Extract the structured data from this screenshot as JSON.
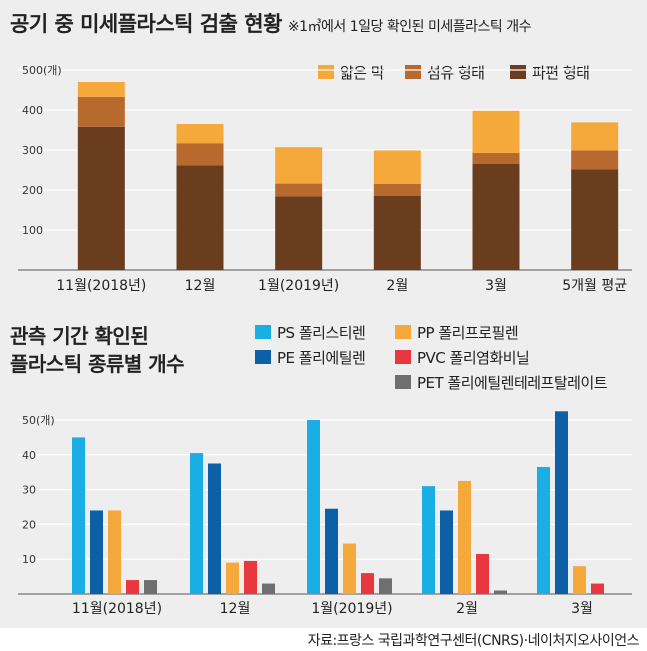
{
  "header": {
    "title": "공기 중 미세플라스틱 검출 현황",
    "subtitle": "※1㎥에서 1일당 확인된 미세플라스틱 개수"
  },
  "chart_data": [
    {
      "type": "bar",
      "stacked": true,
      "title": "공기 중 미세플라스틱 검출 현황",
      "unit_label": "500(개)",
      "categories": [
        "11월(2018년)",
        "12월",
        "1월(2019년)",
        "2월",
        "3월",
        "5개월 평균"
      ],
      "ylim": [
        0,
        500
      ],
      "yticks": [
        "500(개)",
        "400",
        "300",
        "200",
        "100"
      ],
      "series": [
        {
          "name": "파편 형태",
          "color": "#6b3d1f",
          "values": [
            358,
            262,
            184,
            185,
            265,
            252
          ]
        },
        {
          "name": "섬유 형태",
          "color": "#b86a2e",
          "values": [
            75,
            55,
            32,
            30,
            28,
            47
          ]
        },
        {
          "name": "얇은 막",
          "color": "#f5a93b",
          "values": [
            37,
            48,
            91,
            84,
            105,
            70
          ]
        }
      ]
    },
    {
      "type": "bar",
      "title_lines": [
        "관측 기간 확인된",
        "플라스틱 종류별 개수"
      ],
      "unit_label": "50(개)",
      "categories": [
        "11월(2018년)",
        "12월",
        "1월(2019년)",
        "2월",
        "3월"
      ],
      "ylim": [
        0,
        50
      ],
      "yticks": [
        "50(개)",
        "40",
        "30",
        "20",
        "10"
      ],
      "series": [
        {
          "name": "PS 폴리스티렌",
          "color": "#1aaee5",
          "values": [
            45,
            40.5,
            50,
            31,
            36.5
          ]
        },
        {
          "name": "PE 폴리에틸렌",
          "color": "#0d5fa6",
          "values": [
            24,
            37.5,
            24.5,
            24,
            52.5
          ]
        },
        {
          "name": "PP 폴리프로필렌",
          "color": "#f5a93b",
          "values": [
            24,
            9,
            14.5,
            32.5,
            8
          ]
        },
        {
          "name": "PVC 폴리염화비닐",
          "color": "#e8373e",
          "values": [
            4,
            9.5,
            6,
            11.5,
            3
          ]
        },
        {
          "name": "PET 폴리에틸렌테레프탈레이트",
          "color": "#6f6f6f",
          "values": [
            4,
            3,
            4.5,
            1,
            0
          ]
        }
      ]
    }
  ],
  "source": "자료:프랑스 국립과학연구센터(CNRS)·네이처지오사이언스"
}
